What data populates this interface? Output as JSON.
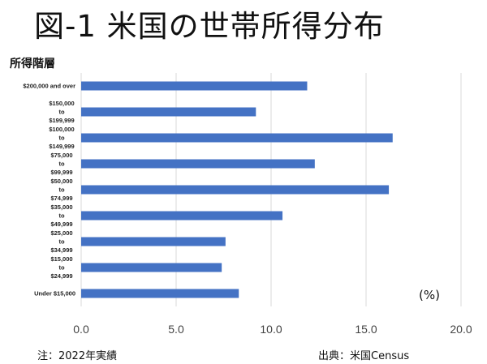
{
  "title": "図-1 米国の世帯所得分布",
  "axis_caption": "所得階層",
  "unit_label": "(%)",
  "note": "注：2022年実績",
  "source": "出典：米国Census",
  "colors": {
    "bar": "#4472C4",
    "grid": "#d9d9d9",
    "tick_text": "#444444"
  },
  "chart_data": {
    "type": "bar",
    "orientation": "horizontal",
    "categories": [
      [
        "$200,000 and over"
      ],
      [
        "$150,000",
        "to",
        "$199,999"
      ],
      [
        "$100,000",
        "to",
        "$149,999"
      ],
      [
        "$75,000",
        "to",
        "$99,999"
      ],
      [
        "$50,000",
        "to",
        "$74,999"
      ],
      [
        "$35,000",
        "to",
        "$49,999"
      ],
      [
        "$25,000",
        "to",
        "$34,999"
      ],
      [
        "$15,000",
        "to",
        "$24,999"
      ],
      [
        "Under $15,000"
      ]
    ],
    "values": [
      11.9,
      9.2,
      16.4,
      12.3,
      16.2,
      10.6,
      7.6,
      7.4,
      8.3
    ],
    "xlim": [
      0,
      20
    ],
    "xticks": [
      0,
      5,
      10,
      15,
      20
    ],
    "xtick_labels": [
      "0.0",
      "5.0",
      "10.0",
      "15.0",
      "20.0"
    ],
    "grid": "vertical",
    "xlabel": "",
    "ylabel": "所得階層"
  }
}
